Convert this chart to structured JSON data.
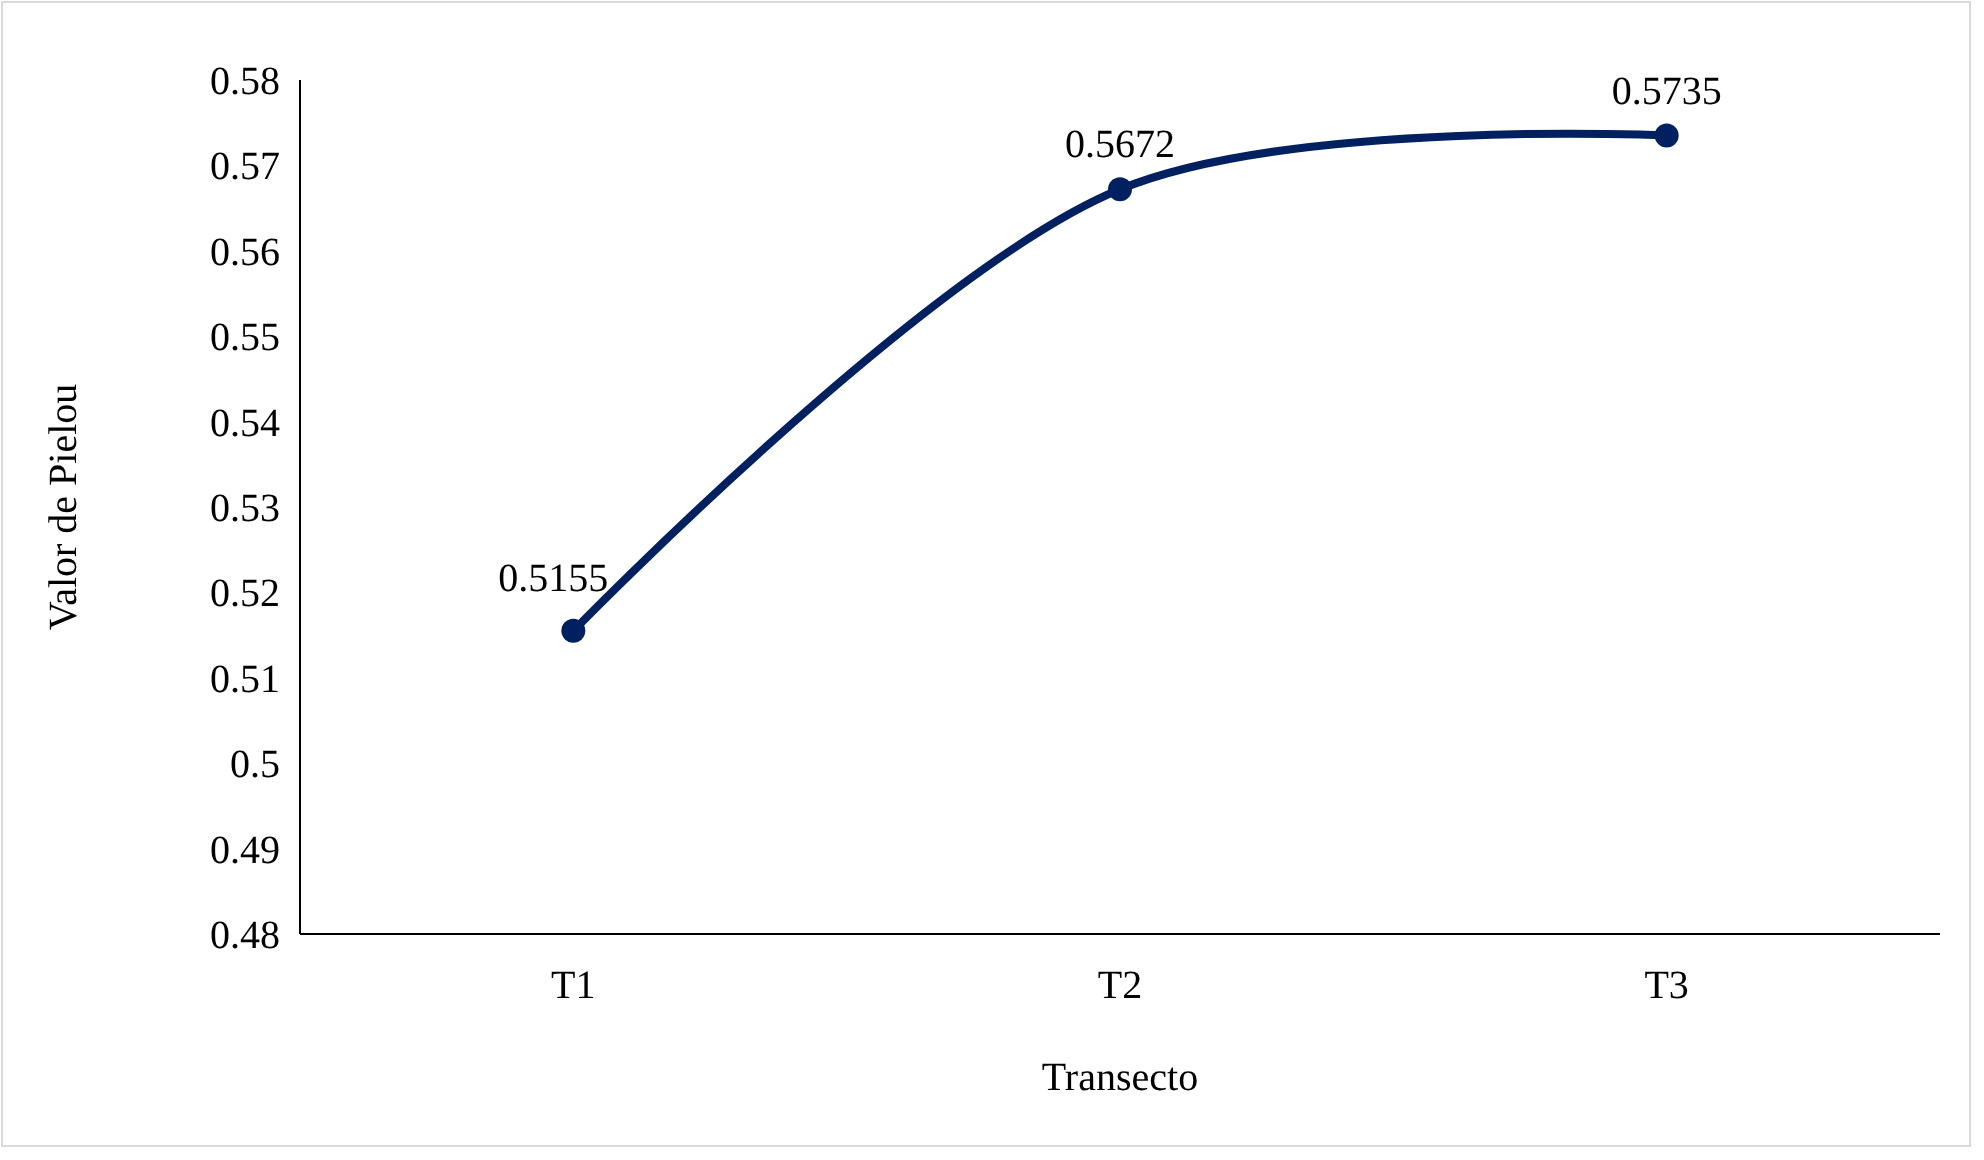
{
  "chart_data": {
    "type": "line",
    "xlabel": "Transecto",
    "ylabel": "Valor de Pielou",
    "categories": [
      "T1",
      "T2",
      "T3"
    ],
    "series": [
      {
        "color": "#002060",
        "values": [
          0.5155,
          0.5672,
          0.5735
        ]
      }
    ],
    "ylim": [
      0.48,
      0.58
    ],
    "yticks": [
      0.48,
      0.49,
      0.5,
      0.51,
      0.52,
      0.53,
      0.54,
      0.55,
      0.56,
      0.57,
      0.58
    ],
    "data_labels": true,
    "marker": "circle"
  }
}
